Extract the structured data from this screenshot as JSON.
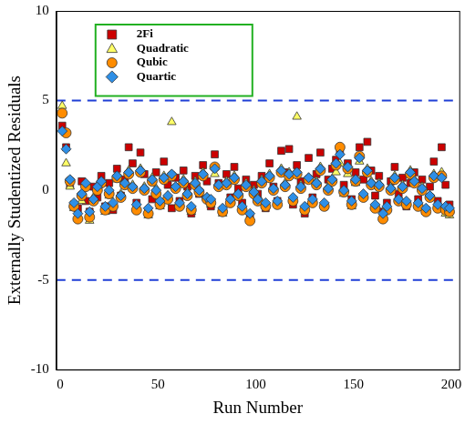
{
  "chart_data": {
    "type": "scatter",
    "x_label": "Run Number",
    "y_label": "Externally Studentized Residuals",
    "xlim": [
      -2,
      204
    ],
    "xticks": [
      0,
      50,
      100,
      150,
      200
    ],
    "ylim": [
      -10,
      10
    ],
    "yticks": [
      -10,
      -5,
      0,
      5,
      10
    ],
    "grid": false,
    "legend": "upper left",
    "limit_lines": [
      5,
      -5
    ],
    "x": [
      1,
      3,
      5,
      7,
      9,
      11,
      13,
      15,
      17,
      19,
      21,
      23,
      25,
      27,
      29,
      31,
      33,
      35,
      37,
      39,
      41,
      43,
      45,
      47,
      49,
      51,
      53,
      55,
      57,
      59,
      61,
      63,
      65,
      67,
      69,
      71,
      73,
      75,
      77,
      79,
      81,
      83,
      85,
      87,
      89,
      91,
      93,
      95,
      97,
      99,
      101,
      103,
      105,
      107,
      109,
      111,
      113,
      115,
      117,
      119,
      121,
      123,
      125,
      127,
      129,
      131,
      133,
      135,
      137,
      139,
      141,
      143,
      145,
      147,
      149,
      151,
      153,
      155,
      157,
      159,
      161,
      163,
      165,
      167,
      169,
      171,
      173,
      175,
      177,
      179,
      181,
      183,
      185,
      187,
      189,
      191,
      193,
      195,
      197,
      199
    ],
    "series": [
      {
        "name": "2Fi",
        "color": "#cc0000",
        "marker": "square",
        "values": [
          3.6,
          2.4,
          0.3,
          -0.8,
          -1.0,
          0.5,
          -0.6,
          -1.2,
          0.2,
          -0.4,
          0.8,
          -0.9,
          0.4,
          -1.1,
          1.2,
          -0.3,
          0.6,
          2.4,
          1.5,
          -0.7,
          2.1,
          0.9,
          -1.2,
          -0.5,
          1.0,
          -0.8,
          1.6,
          0.3,
          -1.0,
          0.7,
          -0.6,
          1.1,
          0.2,
          -1.3,
          0.8,
          -0.2,
          1.4,
          0.5,
          -0.9,
          2.0,
          0.4,
          -1.1,
          0.9,
          -0.4,
          1.3,
          0.1,
          -0.7,
          0.6,
          -1.4,
          0.3,
          -0.2,
          0.8,
          -1.0,
          1.5,
          0.2,
          -0.6,
          2.2,
          1.0,
          2.3,
          -0.8,
          1.4,
          0.5,
          -1.3,
          1.8,
          -0.4,
          0.9,
          2.1,
          -0.9,
          0.6,
          1.2,
          1.7,
          2.2,
          0.3,
          1.5,
          -0.5,
          1.0,
          2.4,
          0.6,
          2.7,
          1.1,
          -0.3,
          0.8,
          -1.2,
          -0.7,
          0.5,
          1.3,
          -0.2,
          0.7,
          -0.9,
          0.4,
          1.0,
          -0.5,
          0.6,
          -1.1,
          0.2,
          1.6,
          -0.6,
          2.4,
          0.3,
          -0.8
        ]
      },
      {
        "name": "Quadratic",
        "color": "#ffff66",
        "marker": "triangle",
        "values": [
          4.7,
          1.5,
          0.2,
          -1.0,
          -1.5,
          -0.6,
          0.3,
          -1.7,
          -0.4,
          0.1,
          0.5,
          -1.2,
          -0.3,
          -0.8,
          0.6,
          -0.2,
          0.4,
          1.1,
          0.3,
          -1.0,
          1.2,
          0.2,
          -1.4,
          0.7,
          0.1,
          -0.9,
          0.8,
          -0.3,
          3.8,
          0.2,
          -0.7,
          0.6,
          -0.1,
          -1.2,
          0.5,
          0.0,
          1.0,
          -0.4,
          -0.8,
          0.9,
          0.3,
          -1.3,
          0.5,
          -0.6,
          0.8,
          -0.2,
          -1.0,
          0.4,
          -1.5,
          0.0,
          -0.4,
          0.6,
          -0.8,
          0.9,
          0.1,
          -0.7,
          1.2,
          0.4,
          1.0,
          -0.5,
          4.1,
          0.3,
          -1.0,
          0.7,
          -0.6,
          0.5,
          1.3,
          -0.8,
          0.2,
          0.6,
          1.0,
          1.5,
          -0.2,
          0.9,
          -0.9,
          0.4,
          1.6,
          -0.3,
          1.2,
          0.5,
          -0.9,
          0.4,
          -1.5,
          -1.0,
          0.2,
          0.8,
          -0.5,
          0.3,
          -0.7,
          1.1,
          0.6,
          -0.8,
          0.2,
          -1.2,
          -0.3,
          0.9,
          -0.9,
          1.0,
          -1.3,
          -1.4
        ]
      },
      {
        "name": "Qubic",
        "color": "#ff8c00",
        "marker": "circle",
        "values": [
          4.3,
          3.2,
          0.5,
          -0.9,
          -1.6,
          -0.3,
          0.2,
          -1.5,
          -0.6,
          0.0,
          0.4,
          -1.1,
          -0.2,
          -0.9,
          0.7,
          -0.4,
          0.3,
          0.9,
          0.1,
          -1.1,
          1.0,
          0.0,
          -1.3,
          0.5,
          -0.2,
          -0.8,
          0.6,
          -0.5,
          0.8,
          0.1,
          -0.9,
          0.4,
          -0.3,
          -1.1,
          0.3,
          -0.1,
          0.8,
          -0.5,
          -0.7,
          1.3,
          0.2,
          -1.2,
          0.3,
          -0.7,
          0.6,
          -0.3,
          -1.1,
          0.2,
          -1.7,
          -0.2,
          -0.6,
          0.4,
          -0.9,
          0.7,
          0.0,
          -0.8,
          1.0,
          0.2,
          0.8,
          -0.6,
          0.9,
          0.1,
          -1.1,
          0.6,
          -0.7,
          0.3,
          1.1,
          -0.9,
          0.0,
          0.5,
          1.4,
          2.4,
          -0.1,
          1.2,
          -0.8,
          0.5,
          1.9,
          -0.4,
          1.0,
          0.3,
          -1.0,
          0.2,
          -1.6,
          -1.1,
          0.0,
          0.6,
          -0.6,
          0.1,
          -0.8,
          0.9,
          0.4,
          -0.9,
          0.0,
          -1.2,
          -0.4,
          0.7,
          -1.0,
          0.8,
          -1.1,
          -1.2
        ]
      },
      {
        "name": "Quartic",
        "color": "#2e8fe6",
        "marker": "diamond",
        "values": [
          3.3,
          2.3,
          0.6,
          -0.7,
          -1.3,
          -0.2,
          0.4,
          -1.2,
          -0.5,
          0.2,
          0.5,
          -0.9,
          0.0,
          -0.7,
          0.8,
          -0.3,
          0.4,
          1.0,
          0.2,
          -0.8,
          1.1,
          0.1,
          -1.0,
          0.6,
          0.0,
          -0.6,
          0.7,
          -0.3,
          0.9,
          0.2,
          -0.7,
          0.5,
          -0.2,
          -0.9,
          0.4,
          0.0,
          0.9,
          -0.4,
          -0.5,
          1.2,
          0.3,
          -1.0,
          0.4,
          -0.5,
          0.7,
          -0.2,
          -0.9,
          0.3,
          -1.3,
          -0.1,
          -0.5,
          0.5,
          -0.7,
          0.8,
          0.1,
          -0.6,
          1.1,
          0.3,
          0.9,
          -0.4,
          1.0,
          0.2,
          -0.9,
          0.7,
          -0.5,
          0.4,
          1.2,
          -0.7,
          0.1,
          0.6,
          1.5,
          2.0,
          0.0,
          1.3,
          -0.6,
          0.6,
          1.8,
          -0.2,
          1.1,
          0.4,
          -0.8,
          0.3,
          -1.3,
          -0.9,
          0.1,
          0.7,
          -0.5,
          0.2,
          -0.6,
          1.0,
          0.5,
          -0.7,
          0.1,
          -1.0,
          -0.3,
          0.8,
          -0.8,
          0.7,
          -0.9,
          -1.0
        ]
      }
    ]
  }
}
